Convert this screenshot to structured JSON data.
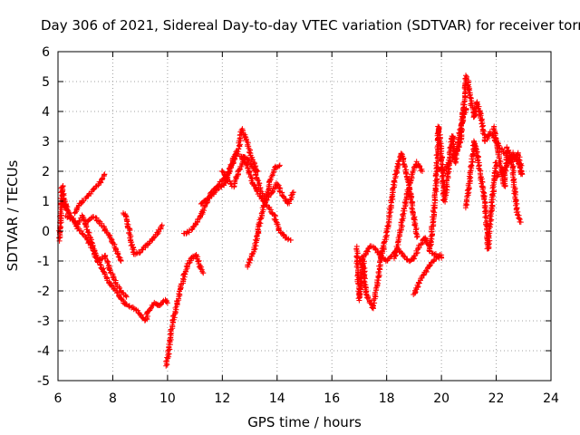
{
  "chart_data": {
    "type": "scatter",
    "title": "Day 306 of 2021, Sidereal Day-to-day VTEC variation (SDTVAR) for receiver torn",
    "xlabel": "GPS time / hours",
    "ylabel": "SDTVAR / TECUs",
    "xlim": [
      6,
      24
    ],
    "ylim": [
      -5,
      6
    ],
    "xticks": [
      6,
      8,
      10,
      12,
      14,
      16,
      18,
      20,
      22,
      24
    ],
    "yticks": [
      -5,
      -4,
      -3,
      -2,
      -1,
      0,
      1,
      2,
      3,
      4,
      5,
      6
    ],
    "grid": true,
    "marker": "+",
    "series": [
      {
        "name": "SDTVAR",
        "color": "#ff0000",
        "tracks": [
          {
            "x": [
              6.05,
              6.1,
              6.15,
              6.2,
              6.25,
              6.3,
              6.35
            ],
            "y": [
              -0.3,
              0.5,
              1.5,
              1.2,
              0.8,
              0.9,
              0.7
            ]
          },
          {
            "x": [
              6.2,
              6.4,
              6.6,
              6.8,
              7.0,
              7.2,
              7.4,
              7.6,
              7.8,
              8.0,
              8.2,
              8.4,
              8.6,
              8.8,
              9.0,
              9.2,
              9.3,
              9.5,
              9.7,
              9.9,
              10.0
            ],
            "y": [
              0.9,
              0.6,
              0.3,
              0.0,
              -0.2,
              -0.5,
              -0.9,
              -1.2,
              -1.6,
              -1.9,
              -2.1,
              -2.4,
              -2.5,
              -2.6,
              -2.8,
              -3.0,
              -2.7,
              -2.4,
              -2.5,
              -2.3,
              -2.4
            ]
          },
          {
            "x": [
              6.3,
              6.5,
              6.7,
              6.9,
              7.1,
              7.3,
              7.5,
              7.7,
              7.9,
              8.1,
              8.3,
              8.5
            ],
            "y": [
              0.5,
              0.4,
              0.2,
              0.5,
              0.0,
              -0.6,
              -1.0,
              -0.8,
              -1.3,
              -1.7,
              -2.0,
              -2.2
            ]
          },
          {
            "x": [
              6.6,
              6.8,
              7.0,
              7.2,
              7.4,
              7.6,
              7.7
            ],
            "y": [
              0.6,
              0.9,
              1.1,
              1.3,
              1.5,
              1.7,
              1.9
            ]
          },
          {
            "x": [
              7.0,
              7.3,
              7.6,
              7.9,
              8.1,
              8.3
            ],
            "y": [
              0.3,
              0.5,
              0.2,
              -0.2,
              -0.6,
              -1.0
            ]
          },
          {
            "x": [
              8.4,
              8.5,
              8.6,
              8.7,
              8.8,
              9.0,
              9.2,
              9.4,
              9.6,
              9.8
            ],
            "y": [
              0.6,
              0.5,
              0.0,
              -0.5,
              -0.8,
              -0.7,
              -0.5,
              -0.3,
              -0.1,
              0.2
            ]
          },
          {
            "x": [
              9.95,
              10.05,
              10.15,
              10.3,
              10.45,
              10.6,
              10.75,
              10.9,
              11.05,
              11.2,
              11.3
            ],
            "y": [
              -4.5,
              -4.0,
              -3.2,
              -2.6,
              -2.0,
              -1.5,
              -1.1,
              -0.9,
              -0.8,
              -1.2,
              -1.4
            ]
          },
          {
            "x": [
              10.6,
              10.8,
              11.0,
              11.2,
              11.4,
              11.6,
              11.8,
              12.0,
              12.2,
              12.4,
              12.6,
              12.7,
              12.9,
              13.1,
              13.3
            ],
            "y": [
              -0.1,
              0.0,
              0.2,
              0.5,
              0.9,
              1.3,
              1.5,
              1.7,
              1.9,
              2.3,
              2.8,
              3.4,
              3.0,
              2.4,
              2.0
            ]
          },
          {
            "x": [
              11.2,
              11.5,
              11.8,
              12.1,
              12.3,
              12.5,
              12.7,
              12.9,
              13.1,
              13.3,
              13.5,
              13.7,
              13.9,
              14.1,
              14.3,
              14.5
            ],
            "y": [
              0.9,
              1.1,
              1.4,
              1.6,
              2.2,
              2.6,
              2.5,
              2.2,
              1.6,
              1.3,
              1.0,
              0.8,
              0.5,
              0.0,
              -0.2,
              -0.3
            ]
          },
          {
            "x": [
              12.0,
              12.2,
              12.4,
              12.6,
              12.8,
              13.0,
              13.2,
              13.4,
              13.6,
              13.8,
              14.0,
              14.2,
              14.4,
              14.6
            ],
            "y": [
              2.0,
              1.7,
              1.5,
              2.0,
              2.5,
              2.3,
              2.0,
              1.4,
              1.0,
              1.3,
              1.6,
              1.2,
              0.9,
              1.3
            ]
          },
          {
            "x": [
              12.9,
              13.05,
              13.2,
              13.35,
              13.5,
              13.7,
              13.9,
              14.1
            ],
            "y": [
              -1.2,
              -0.9,
              -0.5,
              0.2,
              0.8,
              1.5,
              2.1,
              2.2
            ]
          },
          {
            "x": [
              16.9,
              16.95,
              17.0,
              17.05,
              17.1,
              17.15,
              17.2,
              17.3,
              17.4,
              17.5,
              17.6,
              17.7,
              17.8,
              17.9
            ],
            "y": [
              -0.5,
              -1.5,
              -2.3,
              -1.9,
              -1.2,
              -0.9,
              -1.8,
              -2.2,
              -2.4,
              -2.6,
              -2.0,
              -1.5,
              -0.8,
              -0.6
            ]
          },
          {
            "x": [
              17.0,
              17.2,
              17.4,
              17.6,
              17.8,
              18.0,
              18.2,
              18.4,
              18.6,
              18.8,
              19.0,
              19.2,
              19.4,
              19.6,
              19.8,
              20.0
            ],
            "y": [
              -1.0,
              -0.8,
              -0.5,
              -0.6,
              -0.9,
              -1.0,
              -0.8,
              -0.6,
              -0.8,
              -1.0,
              -0.9,
              -0.5,
              -0.2,
              -0.7,
              -0.8,
              -0.9
            ]
          },
          {
            "x": [
              17.8,
              17.95,
              18.1,
              18.25,
              18.4,
              18.55,
              18.7,
              18.85,
              19.0,
              19.1
            ],
            "y": [
              -0.8,
              -0.3,
              0.5,
              1.5,
              2.2,
              2.6,
              2.0,
              1.3,
              0.5,
              -0.2
            ]
          },
          {
            "x": [
              18.3,
              18.5,
              18.7,
              18.9,
              19.1,
              19.3
            ],
            "y": [
              -0.9,
              0.0,
              1.0,
              1.8,
              2.3,
              2.0
            ]
          },
          {
            "x": [
              19.0,
              19.2,
              19.4,
              19.6,
              19.8,
              20.0
            ],
            "y": [
              -2.1,
              -1.7,
              -1.4,
              -1.1,
              -0.9,
              -0.8
            ]
          },
          {
            "x": [
              19.6,
              19.7,
              19.8,
              19.9,
              20.0,
              20.1,
              20.2,
              20.3,
              20.4,
              20.5,
              20.7,
              20.9
            ],
            "y": [
              -0.5,
              0.5,
              1.5,
              3.5,
              2.5,
              1.0,
              1.5,
              2.5,
              3.2,
              2.3,
              3.5,
              4.1
            ]
          },
          {
            "x": [
              19.9,
              20.1,
              20.3,
              20.5,
              20.7,
              20.9,
              21.0,
              21.1,
              21.2,
              21.3,
              21.4,
              21.5,
              21.6,
              21.8,
              22.0,
              22.2,
              22.4,
              22.6,
              22.8,
              22.95
            ],
            "y": [
              2.1,
              2.0,
              2.3,
              2.6,
              3.0,
              5.2,
              4.8,
              4.2,
              3.8,
              4.3,
              4.0,
              3.5,
              3.0,
              3.3,
              3.0,
              2.7,
              2.5,
              2.4,
              2.6,
              1.9
            ]
          },
          {
            "x": [
              20.9,
              21.0,
              21.1,
              21.2,
              21.3,
              21.4,
              21.5,
              21.6,
              21.7,
              21.8,
              21.9,
              22.0
            ],
            "y": [
              0.8,
              1.5,
              2.2,
              3.0,
              2.6,
              2.0,
              1.5,
              0.8,
              -0.6,
              0.5,
              1.5,
              2.3
            ]
          },
          {
            "x": [
              21.9,
              22.0,
              22.1,
              22.2,
              22.3,
              22.4,
              22.5,
              22.6,
              22.7,
              22.8,
              22.9
            ],
            "y": [
              3.5,
              3.0,
              2.5,
              2.0,
              1.5,
              2.8,
              2.5,
              2.2,
              1.0,
              0.5,
              0.3
            ]
          },
          {
            "x": [
              22.0,
              22.2,
              22.4,
              22.6,
              22.8,
              22.9
            ],
            "y": [
              1.8,
              2.0,
              2.2,
              2.6,
              2.3,
              1.9
            ]
          }
        ]
      }
    ]
  }
}
